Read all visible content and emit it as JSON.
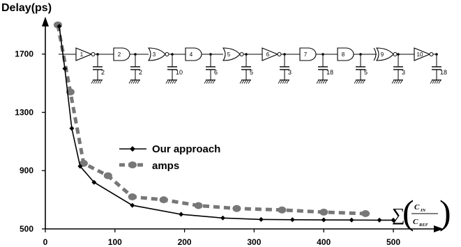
{
  "chart_data": {
    "type": "line",
    "title": "",
    "ylabel": "Delay(ps)",
    "xlabel": "",
    "xlim": [
      0,
      600
    ],
    "ylim": [
      500,
      1900
    ],
    "x_ticks": [
      0,
      100,
      200,
      300,
      400,
      500
    ],
    "y_ticks": [
      500,
      900,
      1300,
      1700
    ],
    "legend": {
      "position": "center-left",
      "entries": [
        "Our approach",
        "amps"
      ]
    },
    "series": [
      {
        "name": "Our approach",
        "color": "#000000",
        "style": "solid-line-diamond-markers",
        "x": [
          20,
          28,
          38,
          50,
          70,
          125,
          195,
          255,
          310,
          355,
          400,
          440,
          480,
          500
        ],
        "y": [
          1890,
          1600,
          1190,
          930,
          820,
          662,
          600,
          575,
          565,
          563,
          562,
          561,
          560,
          560
        ]
      },
      {
        "name": "amps",
        "color": "#777777",
        "style": "dashed-line-dot-markers",
        "x": [
          18,
          36,
          55,
          90,
          125,
          170,
          220,
          275,
          340,
          400,
          460
        ],
        "y": [
          1900,
          1440,
          950,
          865,
          720,
          700,
          660,
          640,
          630,
          615,
          605
        ]
      }
    ],
    "inset_circuit": {
      "gates": [
        "1",
        "2",
        "3",
        "4",
        "5",
        "6",
        "7",
        "8",
        "9",
        "10"
      ],
      "load_caps": [
        "2",
        "2",
        "10",
        "6",
        "5",
        "3",
        "18",
        "5",
        "3",
        "18"
      ]
    },
    "annotation": {
      "symbol": "∑",
      "numerator": "C",
      "numerator_sub": "IN",
      "denominator": "C",
      "denominator_sub": "REF"
    }
  }
}
